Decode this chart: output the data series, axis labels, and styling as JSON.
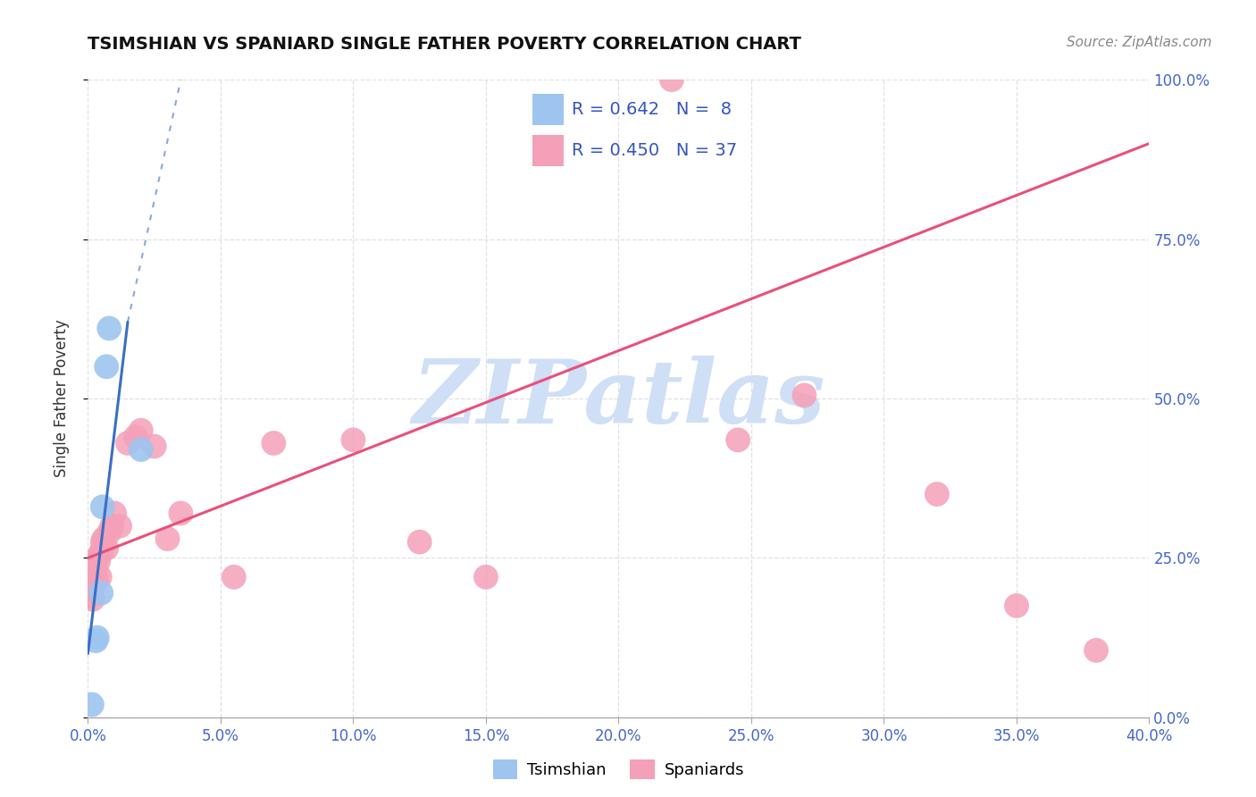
{
  "title": "TSIMSHIAN VS SPANIARD SINGLE FATHER POVERTY CORRELATION CHART",
  "source": "Source: ZipAtlas.com",
  "xlabel_ticks": [
    0.0,
    5.0,
    10.0,
    15.0,
    20.0,
    25.0,
    30.0,
    35.0,
    40.0
  ],
  "ylabel_ticks": [
    0.0,
    25.0,
    50.0,
    75.0,
    100.0
  ],
  "xlim": [
    0.0,
    40.0
  ],
  "ylim": [
    0.0,
    100.0
  ],
  "tsimshian_x": [
    0.15,
    0.3,
    0.35,
    0.5,
    0.55,
    0.7,
    0.8,
    2.0
  ],
  "tsimshian_y": [
    2.0,
    12.0,
    12.5,
    19.5,
    33.0,
    55.0,
    61.0,
    42.0
  ],
  "spaniard_x": [
    0.05,
    0.1,
    0.12,
    0.15,
    0.18,
    0.2,
    0.25,
    0.28,
    0.32,
    0.35,
    0.4,
    0.45,
    0.5,
    0.55,
    0.6,
    0.7,
    0.8,
    0.9,
    1.0,
    1.2,
    1.5,
    1.8,
    2.0,
    2.5,
    3.0,
    3.5,
    5.5,
    7.0,
    10.0,
    12.5,
    15.0,
    22.0,
    24.5,
    27.0,
    32.0,
    35.0,
    38.0
  ],
  "spaniard_y": [
    19.0,
    21.0,
    22.0,
    20.0,
    18.5,
    22.5,
    24.0,
    23.0,
    21.5,
    25.0,
    24.5,
    22.0,
    26.0,
    27.5,
    28.0,
    26.5,
    29.0,
    30.0,
    32.0,
    30.0,
    43.0,
    44.0,
    45.0,
    42.5,
    28.0,
    32.0,
    22.0,
    43.0,
    43.5,
    27.5,
    22.0,
    100.0,
    43.5,
    50.5,
    35.0,
    17.5,
    10.5
  ],
  "spaniard_trend_x0": 0.0,
  "spaniard_trend_y0": 25.0,
  "spaniard_trend_x1": 40.0,
  "spaniard_trend_y1": 90.0,
  "tsimshian_solid_x0": 0.0,
  "tsimshian_solid_y0": 10.0,
  "tsimshian_solid_x1": 1.5,
  "tsimshian_solid_y1": 62.0,
  "tsimshian_dash_x0": 1.5,
  "tsimshian_dash_y0": 62.0,
  "tsimshian_dash_x1": 3.5,
  "tsimshian_dash_y1": 100.0,
  "tsimshian_color": "#9ec5f0",
  "spaniard_color": "#f4a0b8",
  "tsimshian_line_color": "#3a6fc4",
  "spaniard_line_color": "#e8507a",
  "R_tsimshian": 0.642,
  "N_tsimshian": 8,
  "R_spaniard": 0.45,
  "N_spaniard": 37,
  "watermark": "ZIPatlas",
  "watermark_color": "#cfdff5",
  "ylabel": "Single Father Poverty",
  "background_color": "#ffffff",
  "grid_color": "#e0e0e0",
  "tick_color": "#4466cc"
}
